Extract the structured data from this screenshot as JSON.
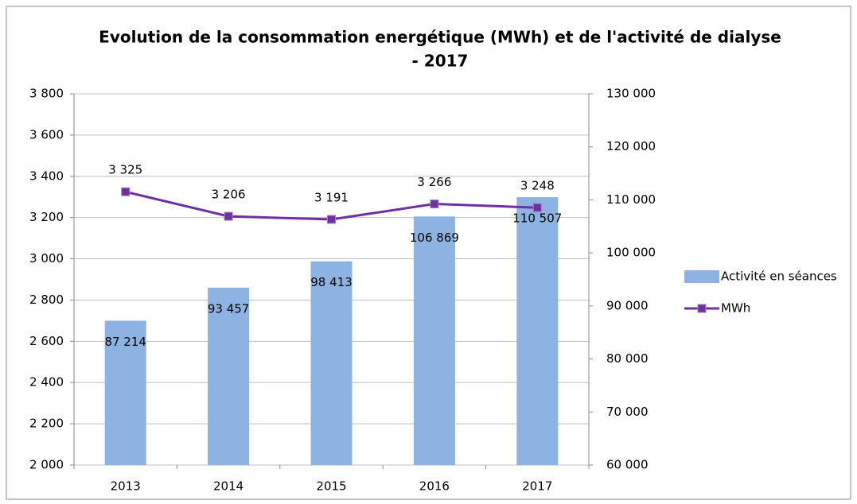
{
  "chart_data": {
    "type": "bar-line",
    "title": [
      "Evolution de la consommation  energétique (MWh) et de l'activité de dialyse",
      "- 2017"
    ],
    "categories": [
      "2013",
      "2014",
      "2015",
      "2016",
      "2017"
    ],
    "series": [
      {
        "name": "Activité en séances",
        "type": "bar",
        "axis": "y2",
        "color": "#8db3e2",
        "values": [
          87214,
          93457,
          98413,
          106869,
          110507
        ],
        "value_labels": [
          "87 214",
          "93 457",
          "98 413",
          "106 869",
          "110 507"
        ]
      },
      {
        "name": "MWh",
        "type": "line",
        "color": "#7030a0",
        "values": [
          3325,
          3206,
          3191,
          3266,
          3248
        ],
        "value_labels": [
          "3 325",
          "3 206",
          "3 191",
          "3 266",
          "3 248"
        ]
      }
    ],
    "ylim": [
      2000,
      3800
    ],
    "yticks": [
      {
        "value": 2000,
        "label": "2 000"
      },
      {
        "value": 2200,
        "label": "2 200"
      },
      {
        "value": 2400,
        "label": "2 400"
      },
      {
        "value": 2600,
        "label": "2 600"
      },
      {
        "value": 2800,
        "label": "2 800"
      },
      {
        "value": 3000,
        "label": "3 000"
      },
      {
        "value": 3200,
        "label": "3 200"
      },
      {
        "value": 3400,
        "label": "3 400"
      },
      {
        "value": 3600,
        "label": "3 600"
      },
      {
        "value": 3800,
        "label": "3 800"
      }
    ],
    "y2lim": [
      60000,
      130000
    ],
    "y2ticks": [
      {
        "value": 60000,
        "label": "60 000"
      },
      {
        "value": 70000,
        "label": "70 000"
      },
      {
        "value": 80000,
        "label": "80 000"
      },
      {
        "value": 90000,
        "label": "90 000"
      },
      {
        "value": 100000,
        "label": "100 000"
      },
      {
        "value": 110000,
        "label": "110 000"
      },
      {
        "value": 120000,
        "label": "120 000"
      },
      {
        "value": 130000,
        "label": "130 000"
      }
    ],
    "grid": true,
    "legend": "right"
  }
}
